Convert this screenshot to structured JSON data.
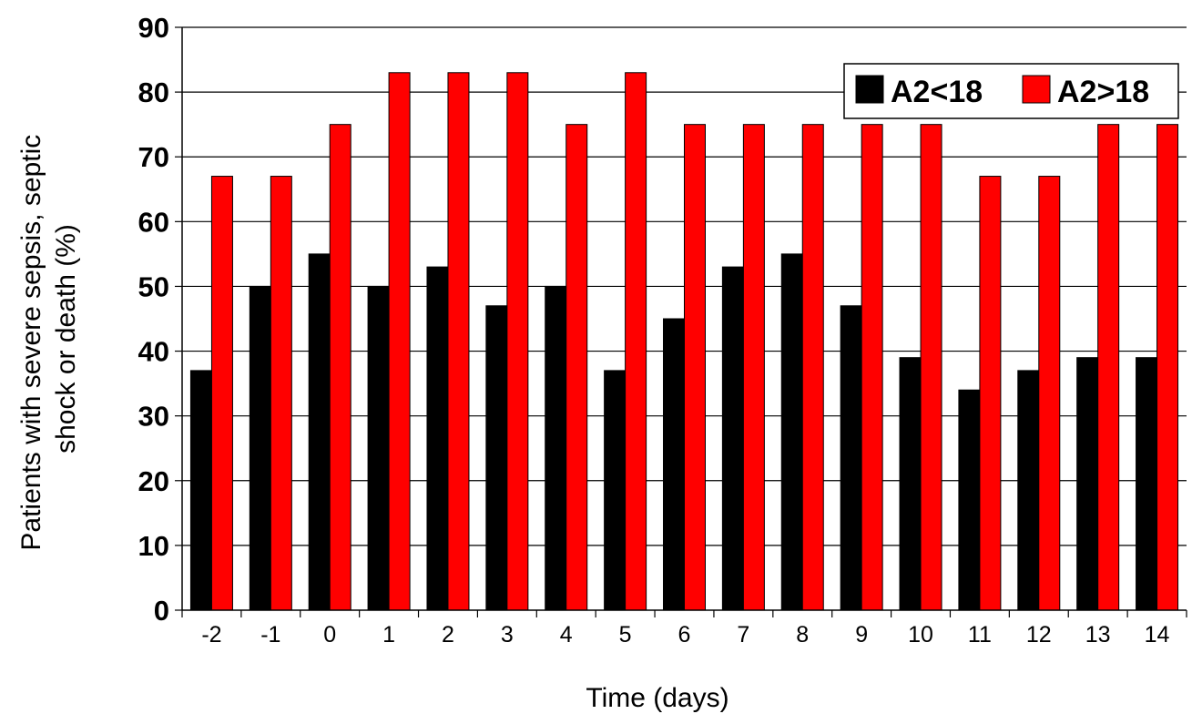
{
  "chart_data": {
    "type": "bar",
    "title": "",
    "xlabel": "Time (days)",
    "ylabel_lines": [
      "Patients with severe sepsis, septic",
      "shock or death (%)"
    ],
    "categories": [
      "-2",
      "-1",
      "0",
      "1",
      "2",
      "3",
      "4",
      "5",
      "6",
      "7",
      "8",
      "9",
      "10",
      "11",
      "12",
      "13",
      "14"
    ],
    "series": [
      {
        "name": "A2<18",
        "color": "#000000",
        "values": [
          37,
          50,
          55,
          50,
          53,
          47,
          50,
          37,
          45,
          53,
          55,
          47,
          39,
          34,
          37,
          39,
          39
        ]
      },
      {
        "name": "A2>18",
        "color": "#ff0000",
        "values": [
          67,
          67,
          75,
          83,
          83,
          83,
          75,
          83,
          75,
          75,
          75,
          75,
          75,
          67,
          67,
          75,
          75
        ]
      }
    ],
    "ylim": [
      0,
      90
    ],
    "yticks": [
      "0",
      "10",
      "20",
      "30",
      "40",
      "50",
      "60",
      "70",
      "80",
      "90"
    ],
    "grid": true,
    "legend_position": "top-right"
  }
}
